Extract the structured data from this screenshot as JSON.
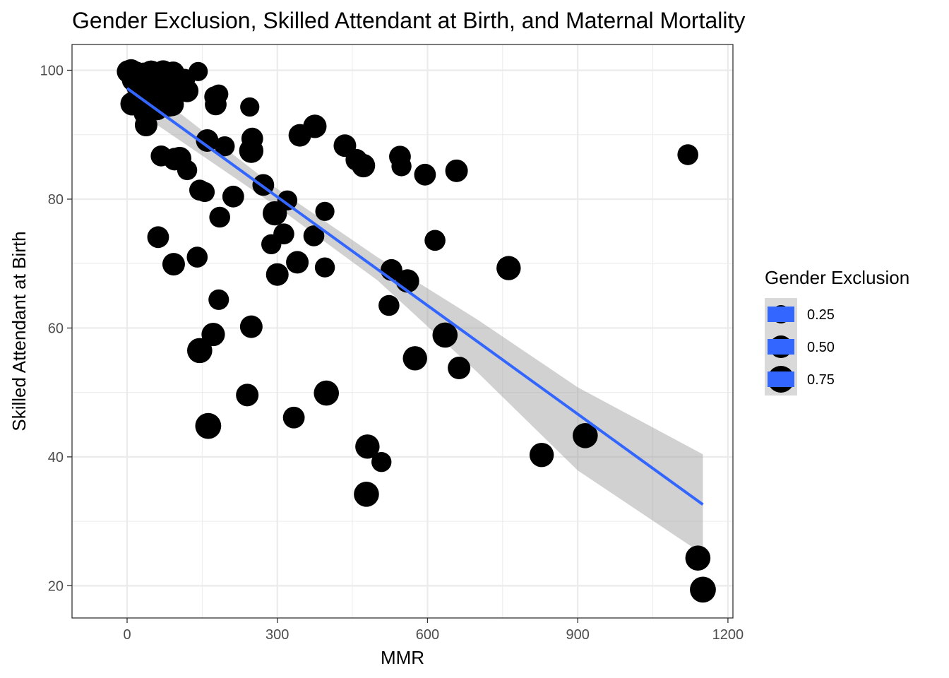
{
  "chart_data": {
    "type": "scatter",
    "title": "Gender Exclusion, Skilled Attendant at Birth, and Maternal Mortality",
    "xlabel": "MMR",
    "ylabel": "Skilled Attendant at Birth",
    "xlim": [
      -110,
      1210
    ],
    "ylim": [
      15,
      104
    ],
    "x_ticks": [
      0,
      300,
      600,
      900,
      1200
    ],
    "x_tick_labels": [
      "0",
      "300",
      "600",
      "900",
      "1200"
    ],
    "y_ticks": [
      20,
      40,
      60,
      80,
      100
    ],
    "y_tick_labels": [
      "20",
      "40",
      "60",
      "80",
      "100"
    ],
    "grid": true,
    "legend": {
      "title": "Gender Exclusion",
      "position": "right",
      "entries": [
        {
          "label": "0.25",
          "value": 0.25
        },
        {
          "label": "0.50",
          "value": 0.5
        },
        {
          "label": "0.75",
          "value": 0.75
        }
      ]
    },
    "size_variable": "Gender Exclusion",
    "size_range": [
      0,
      1
    ],
    "point_color": "#000000",
    "trend": {
      "method": "linear",
      "x": [
        0,
        1150
      ],
      "y": [
        97.2,
        32.6
      ],
      "color": "#3366ff",
      "ribbon_color": "#999999",
      "ribbon": [
        {
          "x": 0,
          "lo": 94.7,
          "hi": 99.7
        },
        {
          "x": 300,
          "lo": 78.8,
          "hi": 81.6
        },
        {
          "x": 500,
          "lo": 67.4,
          "hi": 71.0
        },
        {
          "x": 700,
          "lo": 53.1,
          "hi": 61.3
        },
        {
          "x": 900,
          "lo": 37.9,
          "hi": 50.8
        },
        {
          "x": 1150,
          "lo": 24.9,
          "hi": 40.4
        }
      ]
    },
    "points": [
      {
        "x": 2,
        "y": 99.8,
        "g": 0.5
      },
      {
        "x": 5,
        "y": 99.5,
        "g": 0.45
      },
      {
        "x": 8,
        "y": 99.9,
        "g": 0.55
      },
      {
        "x": 12,
        "y": 98.5,
        "g": 0.5
      },
      {
        "x": 15,
        "y": 99.0,
        "g": 0.6
      },
      {
        "x": 18,
        "y": 99.6,
        "g": 0.5
      },
      {
        "x": 20,
        "y": 97.5,
        "g": 0.45
      },
      {
        "x": 22,
        "y": 98.9,
        "g": 0.55
      },
      {
        "x": 25,
        "y": 99.3,
        "g": 0.5
      },
      {
        "x": 28,
        "y": 96.5,
        "g": 0.6
      },
      {
        "x": 30,
        "y": 98.0,
        "g": 0.5
      },
      {
        "x": 33,
        "y": 99.5,
        "g": 0.45
      },
      {
        "x": 35,
        "y": 97.0,
        "g": 0.55
      },
      {
        "x": 38,
        "y": 98.6,
        "g": 0.5
      },
      {
        "x": 40,
        "y": 96.0,
        "g": 0.6
      },
      {
        "x": 42,
        "y": 99.1,
        "g": 0.45
      },
      {
        "x": 45,
        "y": 97.8,
        "g": 0.5
      },
      {
        "x": 48,
        "y": 99.7,
        "g": 0.55
      },
      {
        "x": 50,
        "y": 98.3,
        "g": 0.6
      },
      {
        "x": 53,
        "y": 96.8,
        "g": 0.5
      },
      {
        "x": 55,
        "y": 99.0,
        "g": 0.45
      },
      {
        "x": 58,
        "y": 97.2,
        "g": 0.55
      },
      {
        "x": 60,
        "y": 98.8,
        "g": 0.5
      },
      {
        "x": 63,
        "y": 95.5,
        "g": 0.6
      },
      {
        "x": 65,
        "y": 99.2,
        "g": 0.5
      },
      {
        "x": 68,
        "y": 97.6,
        "g": 0.45
      },
      {
        "x": 70,
        "y": 98.1,
        "g": 0.55
      },
      {
        "x": 72,
        "y": 99.8,
        "g": 0.5
      },
      {
        "x": 75,
        "y": 96.3,
        "g": 0.6
      },
      {
        "x": 78,
        "y": 98.7,
        "g": 0.5
      },
      {
        "x": 80,
        "y": 97.1,
        "g": 0.45
      },
      {
        "x": 82,
        "y": 99.3,
        "g": 0.55
      },
      {
        "x": 85,
        "y": 95.8,
        "g": 0.5
      },
      {
        "x": 88,
        "y": 98.4,
        "g": 0.6
      },
      {
        "x": 90,
        "y": 94.7,
        "g": 0.55
      },
      {
        "x": 92,
        "y": 99.6,
        "g": 0.5
      },
      {
        "x": 95,
        "y": 97.4,
        "g": 0.45
      },
      {
        "x": 98,
        "y": 98.9,
        "g": 0.5
      },
      {
        "x": 100,
        "y": 96.7,
        "g": 0.55
      },
      {
        "x": 105,
        "y": 98.2,
        "g": 0.5
      },
      {
        "x": 110,
        "y": 97.9,
        "g": 0.45
      },
      {
        "x": 115,
        "y": 98.6,
        "g": 0.4
      },
      {
        "x": 120,
        "y": 96.8,
        "g": 0.5
      },
      {
        "x": 10,
        "y": 94.8,
        "g": 0.55
      },
      {
        "x": 25,
        "y": 95.1,
        "g": 0.5
      },
      {
        "x": 35,
        "y": 93.3,
        "g": 0.45
      },
      {
        "x": 38,
        "y": 91.5,
        "g": 0.5
      },
      {
        "x": 60,
        "y": 94.0,
        "g": 0.5
      },
      {
        "x": 85,
        "y": 94.5,
        "g": 0.45
      },
      {
        "x": 142,
        "y": 99.8,
        "g": 0.3
      },
      {
        "x": 175,
        "y": 95.9,
        "g": 0.4
      },
      {
        "x": 183,
        "y": 96.3,
        "g": 0.3
      },
      {
        "x": 177,
        "y": 94.7,
        "g": 0.45
      },
      {
        "x": 245,
        "y": 94.3,
        "g": 0.3
      },
      {
        "x": 160,
        "y": 89.1,
        "g": 0.5
      },
      {
        "x": 195,
        "y": 88.2,
        "g": 0.35
      },
      {
        "x": 250,
        "y": 89.4,
        "g": 0.45
      },
      {
        "x": 248,
        "y": 87.5,
        "g": 0.6
      },
      {
        "x": 68,
        "y": 86.7,
        "g": 0.4
      },
      {
        "x": 95,
        "y": 86.2,
        "g": 0.5
      },
      {
        "x": 105,
        "y": 86.3,
        "g": 0.55
      },
      {
        "x": 120,
        "y": 84.5,
        "g": 0.35
      },
      {
        "x": 145,
        "y": 81.4,
        "g": 0.4
      },
      {
        "x": 155,
        "y": 81.1,
        "g": 0.35
      },
      {
        "x": 212,
        "y": 80.4,
        "g": 0.45
      },
      {
        "x": 272,
        "y": 82.2,
        "g": 0.45
      },
      {
        "x": 320,
        "y": 79.8,
        "g": 0.35
      },
      {
        "x": 295,
        "y": 77.8,
        "g": 0.6
      },
      {
        "x": 185,
        "y": 77.2,
        "g": 0.4
      },
      {
        "x": 62,
        "y": 74.1,
        "g": 0.45
      },
      {
        "x": 313,
        "y": 74.6,
        "g": 0.4
      },
      {
        "x": 288,
        "y": 73.0,
        "g": 0.35
      },
      {
        "x": 140,
        "y": 71.0,
        "g": 0.4
      },
      {
        "x": 93,
        "y": 69.9,
        "g": 0.5
      },
      {
        "x": 300,
        "y": 68.3,
        "g": 0.5
      },
      {
        "x": 340,
        "y": 70.2,
        "g": 0.5
      },
      {
        "x": 395,
        "y": 69.4,
        "g": 0.35
      },
      {
        "x": 373,
        "y": 74.3,
        "g": 0.4
      },
      {
        "x": 395,
        "y": 78.1,
        "g": 0.3
      },
      {
        "x": 345,
        "y": 89.9,
        "g": 0.5
      },
      {
        "x": 375,
        "y": 91.3,
        "g": 0.55
      },
      {
        "x": 435,
        "y": 88.3,
        "g": 0.5
      },
      {
        "x": 458,
        "y": 86.1,
        "g": 0.45
      },
      {
        "x": 472,
        "y": 85.2,
        "g": 0.55
      },
      {
        "x": 545,
        "y": 86.6,
        "g": 0.45
      },
      {
        "x": 548,
        "y": 85.1,
        "g": 0.35
      },
      {
        "x": 595,
        "y": 83.8,
        "g": 0.45
      },
      {
        "x": 658,
        "y": 84.4,
        "g": 0.5
      },
      {
        "x": 1120,
        "y": 86.9,
        "g": 0.4
      },
      {
        "x": 615,
        "y": 73.6,
        "g": 0.4
      },
      {
        "x": 528,
        "y": 69.0,
        "g": 0.45
      },
      {
        "x": 560,
        "y": 67.3,
        "g": 0.55
      },
      {
        "x": 523,
        "y": 63.5,
        "g": 0.4
      },
      {
        "x": 762,
        "y": 69.3,
        "g": 0.6
      },
      {
        "x": 183,
        "y": 64.4,
        "g": 0.38
      },
      {
        "x": 172,
        "y": 59.0,
        "g": 0.55
      },
      {
        "x": 248,
        "y": 60.2,
        "g": 0.5
      },
      {
        "x": 145,
        "y": 56.5,
        "g": 0.65
      },
      {
        "x": 240,
        "y": 49.6,
        "g": 0.5
      },
      {
        "x": 398,
        "y": 49.9,
        "g": 0.65
      },
      {
        "x": 333,
        "y": 46.1,
        "g": 0.45
      },
      {
        "x": 162,
        "y": 44.8,
        "g": 0.7
      },
      {
        "x": 575,
        "y": 55.3,
        "g": 0.6
      },
      {
        "x": 635,
        "y": 58.9,
        "g": 0.65
      },
      {
        "x": 663,
        "y": 53.8,
        "g": 0.5
      },
      {
        "x": 480,
        "y": 41.6,
        "g": 0.6
      },
      {
        "x": 508,
        "y": 39.2,
        "g": 0.35
      },
      {
        "x": 478,
        "y": 34.2,
        "g": 0.65
      },
      {
        "x": 828,
        "y": 40.3,
        "g": 0.6
      },
      {
        "x": 915,
        "y": 43.3,
        "g": 0.65
      },
      {
        "x": 1140,
        "y": 24.3,
        "g": 0.65
      },
      {
        "x": 1150,
        "y": 19.4,
        "g": 0.7
      }
    ]
  }
}
